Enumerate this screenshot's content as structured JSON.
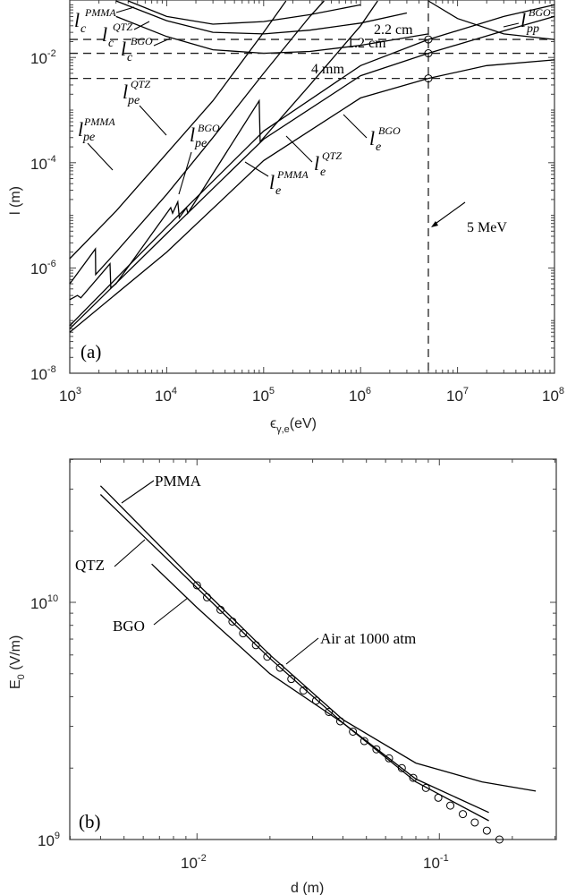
{
  "chart_data": [
    {
      "panel": "(a)",
      "type": "line",
      "xscale": "log",
      "yscale": "log",
      "xlabel": "ε_γ,e(eV)",
      "ylabel": "l (m)",
      "xlim": [
        1000,
        100000000
      ],
      "ylim": [
        1e-08,
        0.12
      ],
      "x_ticks": [
        "10^3",
        "10^4",
        "10^5",
        "10^6",
        "10^7",
        "10^8"
      ],
      "y_ticks": [
        "10^-8",
        "10^-6",
        "10^-4",
        "10^-2"
      ],
      "grid": false,
      "series": [
        {
          "name": "l_c^PMMA",
          "x": [
            4000,
            10000,
            30000,
            100000,
            300000,
            1000000
          ],
          "y": [
            0.12,
            0.06,
            0.043,
            0.048,
            0.065,
            0.1
          ]
        },
        {
          "name": "l_c^QTZ",
          "x": [
            3000,
            10000,
            30000,
            100000,
            300000,
            1000000,
            3000000
          ],
          "y": [
            0.12,
            0.05,
            0.03,
            0.028,
            0.033,
            0.045,
            0.07
          ]
        },
        {
          "name": "l_c^BGO",
          "x": [
            3000,
            10000,
            30000,
            100000,
            300000,
            1000000,
            5000000
          ],
          "y": [
            0.06,
            0.025,
            0.014,
            0.012,
            0.013,
            0.017,
            0.028
          ]
        },
        {
          "name": "l_pe^PMMA",
          "x": [
            1000,
            3000,
            10000,
            30000,
            100000,
            170000
          ],
          "y": [
            1.5e-06,
            1.2e-05,
            0.00015,
            0.0015,
            0.03,
            0.12
          ]
        },
        {
          "name": "l_pe^QTZ",
          "x": [
            1000,
            1840,
            1850,
            3000,
            10000,
            30000,
            100000,
            300000,
            420000
          ],
          "y": [
            5e-07,
            2.3e-06,
            7.5e-07,
            2e-06,
            2.5e-05,
            0.0003,
            0.005,
            0.06,
            0.12
          ]
        },
        {
          "name": "l_pe^BGO",
          "x": [
            1000,
            1200,
            1300,
            2600,
            2650,
            3000,
            11000,
            11500,
            13000,
            13500,
            16000,
            16500,
            90000,
            92000,
            300000,
            1000000,
            1500000
          ],
          "y": [
            2.5e-07,
            3e-07,
            2.7e-07,
            1.2e-06,
            4.2e-07,
            5e-07,
            1.4e-05,
            1.1e-05,
            1.8e-05,
            9e-06,
            1.4e-05,
            1.1e-05,
            0.0015,
            0.00025,
            0.003,
            0.04,
            0.12
          ]
        },
        {
          "name": "l_e^PMMA",
          "x": [
            1000,
            10000,
            100000,
            1000000,
            5000000,
            30000000,
            100000000
          ],
          "y": [
            8e-08,
            6e-06,
            0.0004,
            0.007,
            0.022,
            0.06,
            0.1
          ]
        },
        {
          "name": "l_e^QTZ",
          "x": [
            1000,
            10000,
            100000,
            1000000,
            5000000,
            30000000,
            100000000
          ],
          "y": [
            7e-08,
            4.5e-06,
            0.00028,
            0.0045,
            0.012,
            0.032,
            0.06
          ]
        },
        {
          "name": "l_e^BGO",
          "x": [
            1000,
            10000,
            100000,
            1000000,
            5000000,
            20000000,
            100000000
          ],
          "y": [
            6e-08,
            2e-06,
            0.00011,
            0.0017,
            0.004,
            0.007,
            0.009
          ]
        },
        {
          "name": "l_pp^BGO",
          "x": [
            5000000,
            10000000,
            30000000,
            100000000
          ],
          "y": [
            0.12,
            0.055,
            0.028,
            0.022
          ]
        }
      ],
      "reference_lines": [
        {
          "type": "horizontal",
          "y": 0.022,
          "label": "2.2 cm"
        },
        {
          "type": "horizontal",
          "y": 0.012,
          "label": "1.2 cm"
        },
        {
          "type": "horizontal",
          "y": 0.004,
          "label": "4 mm"
        },
        {
          "type": "vertical",
          "x": 5000000,
          "label": "5 MeV"
        }
      ],
      "markers": [
        {
          "x": 5000000,
          "y": 0.022
        },
        {
          "x": 5000000,
          "y": 0.012
        },
        {
          "x": 5000000,
          "y": 0.004
        }
      ]
    },
    {
      "panel": "(b)",
      "type": "line",
      "xscale": "log",
      "yscale": "log",
      "xlabel": "d  (m)",
      "ylabel": "E_0 (V/m)",
      "xlim": [
        0.003,
        0.3
      ],
      "ylim": [
        1000000000.0,
        40000000000.0
      ],
      "x_ticks": [
        "10^-2",
        "10^-1"
      ],
      "y_ticks": [
        "10^9",
        "10^10"
      ],
      "grid": false,
      "series": [
        {
          "name": "PMMA",
          "x": [
            0.004,
            0.01,
            0.02,
            0.04,
            0.08,
            0.15,
            0.25
          ],
          "y": [
            31000000000.0,
            12000000000.0,
            6000000000.0,
            3200000000.0,
            2100000000.0,
            1750000000.0,
            1600000000.0
          ]
        },
        {
          "name": "QTZ",
          "x": [
            0.004,
            0.01,
            0.02,
            0.04,
            0.08,
            0.16
          ],
          "y": [
            28500000000.0,
            11500000000.0,
            5800000000.0,
            3100000000.0,
            1800000000.0,
            1300000000.0
          ]
        },
        {
          "name": "BGO",
          "x": [
            0.0065,
            0.01,
            0.02,
            0.04,
            0.08,
            0.16
          ],
          "y": [
            14500000000.0,
            9500000000.0,
            5000000000.0,
            3100000000.0,
            1750000000.0,
            1200000000.0
          ]
        },
        {
          "name": "Air at 1000 atm",
          "type": "scatter",
          "x": [
            0.01,
            0.011,
            0.0125,
            0.014,
            0.0155,
            0.0175,
            0.0195,
            0.022,
            0.0245,
            0.0275,
            0.031,
            0.035,
            0.039,
            0.044,
            0.049,
            0.055,
            0.062,
            0.07,
            0.078,
            0.088,
            0.099,
            0.111,
            0.125,
            0.14,
            0.157,
            0.177
          ],
          "y": [
            11800000000.0,
            10500000000.0,
            9300000000.0,
            8300000000.0,
            7400000000.0,
            6600000000.0,
            5900000000.0,
            5300000000.0,
            4750000000.0,
            4250000000.0,
            3850000000.0,
            3450000000.0,
            3150000000.0,
            2850000000.0,
            2600000000.0,
            2400000000.0,
            2200000000.0,
            2000000000.0,
            1820000000.0,
            1650000000.0,
            1500000000.0,
            1390000000.0,
            1280000000.0,
            1180000000.0,
            1090000000.0,
            1000000000.0
          ]
        }
      ]
    }
  ],
  "labels": {
    "panel_a": "(a)",
    "panel_b": "(b)",
    "a_xlabel_eps": "ϵ",
    "a_xlabel_sub": "γ,e",
    "a_xlabel_unit": "(eV)",
    "a_ylabel": "l (m)",
    "b_xlabel": "d  (m)",
    "b_ylabel_E": "E",
    "b_ylabel_sub": "0",
    "b_ylabel_unit": " (V/m)",
    "ref_22": "2.2 cm",
    "ref_12": "1.2 cm",
    "ref_4": "4 mm",
    "ref_5mev": "5 MeV",
    "lc_pmma_sup": "PMMA",
    "lc_qtz_sup": "QTZ",
    "lc_bgo_sup": "BGO",
    "lpe_pmma_sup": "PMMA",
    "lpe_qtz_sup": "QTZ",
    "lpe_bgo_sup": "BGO",
    "le_pmma_sup": "PMMA",
    "le_qtz_sup": "QTZ",
    "le_bgo_sup": "BGO",
    "lpp_bgo_sup": "BGO",
    "sym_l": "l",
    "sub_c": "c",
    "sub_pe": "pe",
    "sub_e": "e",
    "sub_pp": "pp",
    "b_pmma": "PMMA",
    "b_qtz": "QTZ",
    "b_bgo": "BGO",
    "b_air": "Air at 1000 atm"
  },
  "ticks": {
    "a_x": [
      {
        "b": "10",
        "e": "3"
      },
      {
        "b": "10",
        "e": "4"
      },
      {
        "b": "10",
        "e": "5"
      },
      {
        "b": "10",
        "e": "6"
      },
      {
        "b": "10",
        "e": "7"
      },
      {
        "b": "10",
        "e": "8"
      }
    ],
    "a_y": [
      {
        "b": "10",
        "e": "-8"
      },
      {
        "b": "10",
        "e": "-6"
      },
      {
        "b": "10",
        "e": "-4"
      },
      {
        "b": "10",
        "e": "-2"
      }
    ],
    "b_x": [
      {
        "b": "10",
        "e": "-2"
      },
      {
        "b": "10",
        "e": "-1"
      }
    ],
    "b_y": [
      {
        "b": "10",
        "e": "9"
      },
      {
        "b": "10",
        "e": "10"
      }
    ]
  }
}
